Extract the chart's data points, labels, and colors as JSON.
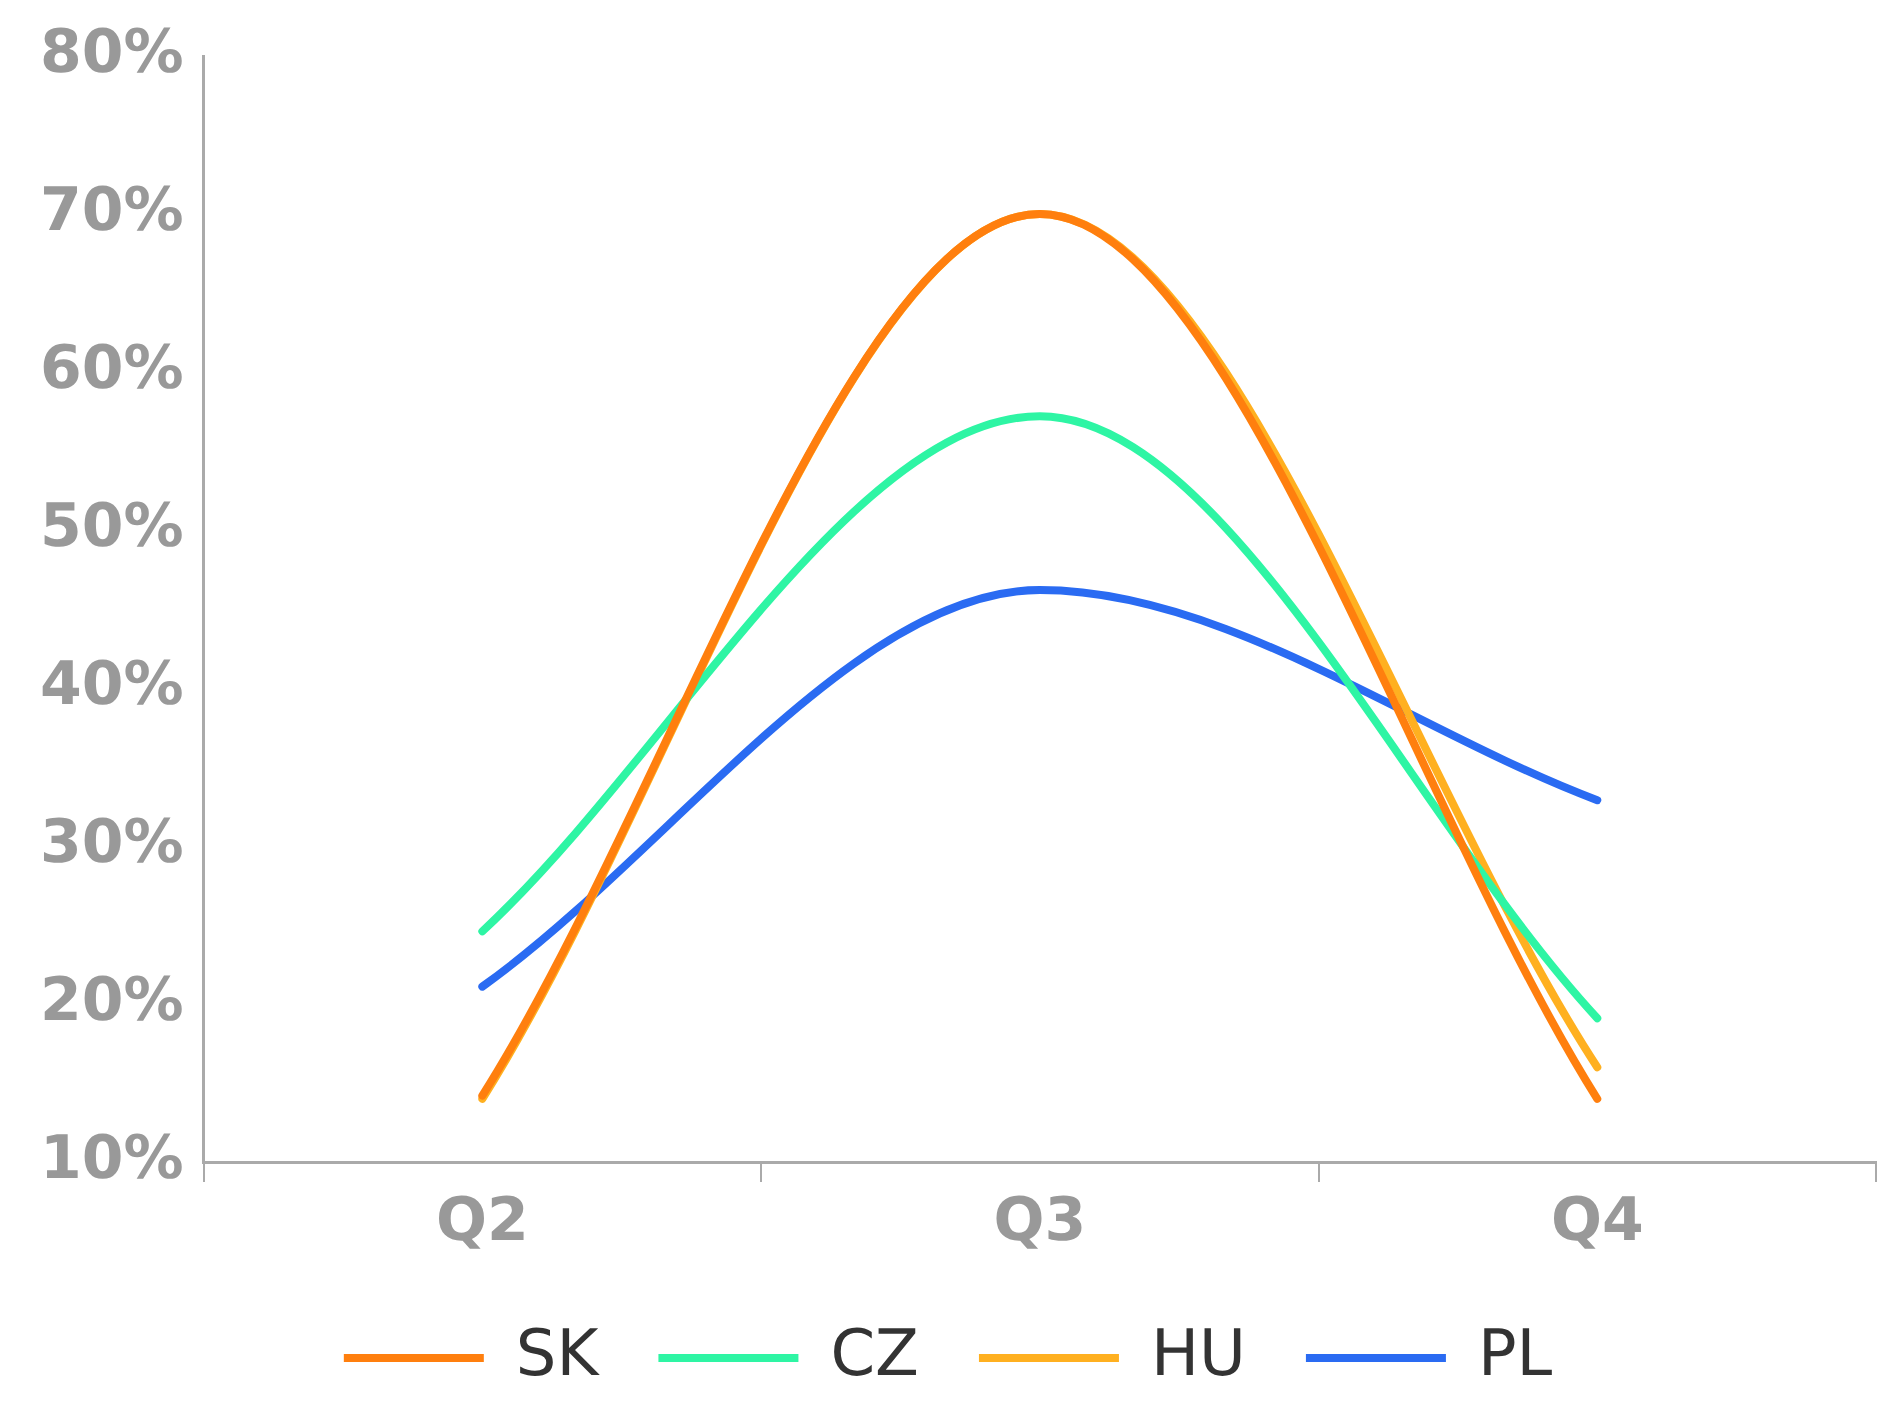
{
  "chart_data": {
    "type": "line",
    "categories": [
      "Q2",
      "Q3",
      "Q4"
    ],
    "series": [
      {
        "name": "SK",
        "color": "#ff7f0e",
        "values": [
          14.2,
          70,
          14
        ]
      },
      {
        "name": "CZ",
        "color": "#2ef5a4",
        "values": [
          24.6,
          57.2,
          19.1
        ]
      },
      {
        "name": "HU",
        "color": "#ffb020",
        "values": [
          14,
          70,
          16
        ]
      },
      {
        "name": "PL",
        "color": "#2a6bf2",
        "values": [
          21.1,
          46.2,
          32.9
        ]
      }
    ],
    "ylim": [
      10,
      80
    ],
    "yticks": [
      {
        "value": 10,
        "label": "10%"
      },
      {
        "value": 20,
        "label": "20%"
      },
      {
        "value": 30,
        "label": "30%"
      },
      {
        "value": 40,
        "label": "40%"
      },
      {
        "value": 50,
        "label": "50%"
      },
      {
        "value": 60,
        "label": "60%"
      },
      {
        "value": 70,
        "label": "70%"
      },
      {
        "value": 80,
        "label": "80%"
      }
    ],
    "grid": false,
    "legend": "bottom",
    "marker": "none",
    "line_style": "solid"
  }
}
